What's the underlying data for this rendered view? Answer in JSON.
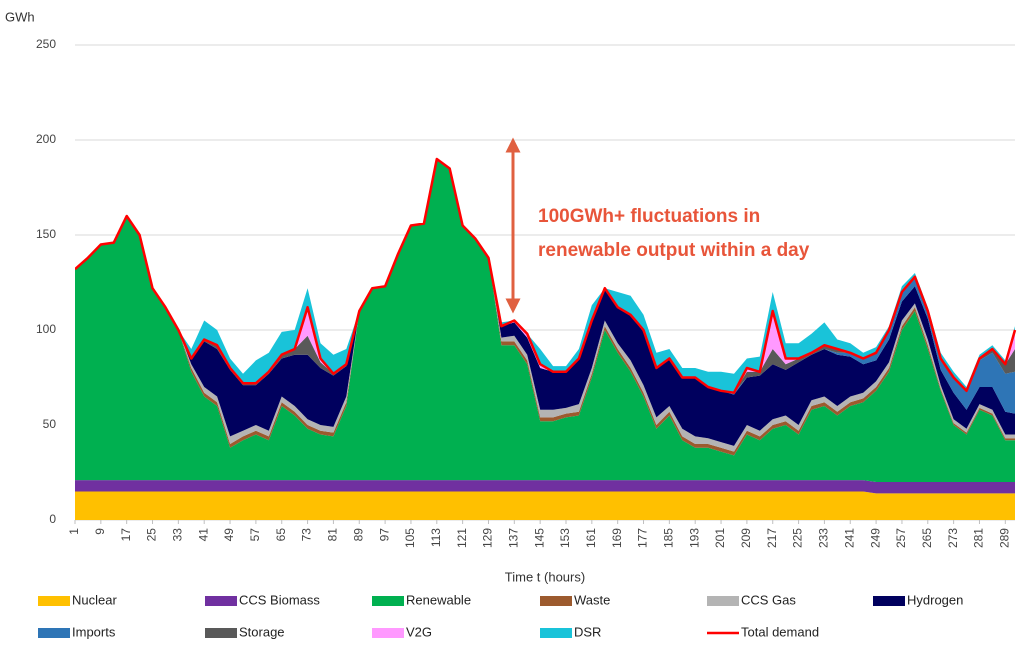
{
  "chart_data": {
    "type": "stacked_area",
    "y_label": "GWh",
    "x_label": "Time t (hours)",
    "annotation": [
      "100GWh+ fluctuations in",
      "renewable output within a day"
    ],
    "xlim": [
      1,
      292
    ],
    "ylim": [
      0,
      250
    ],
    "yticks": [
      0,
      50,
      100,
      150,
      200,
      250
    ],
    "xticks": [
      1,
      9,
      17,
      25,
      33,
      41,
      49,
      57,
      65,
      73,
      81,
      89,
      97,
      105,
      113,
      121,
      129,
      137,
      145,
      153,
      161,
      169,
      177,
      185,
      193,
      201,
      209,
      217,
      225,
      233,
      241,
      249,
      257,
      265,
      273,
      281,
      289
    ],
    "grid": true,
    "x": [
      1,
      5,
      9,
      13,
      17,
      21,
      25,
      29,
      33,
      37,
      41,
      45,
      49,
      53,
      57,
      61,
      65,
      69,
      73,
      77,
      81,
      85,
      89,
      93,
      97,
      101,
      105,
      109,
      113,
      117,
      121,
      125,
      129,
      133,
      137,
      141,
      145,
      149,
      153,
      157,
      161,
      165,
      169,
      173,
      177,
      181,
      185,
      189,
      193,
      197,
      201,
      205,
      209,
      213,
      217,
      221,
      225,
      229,
      233,
      237,
      241,
      245,
      249,
      253,
      257,
      261,
      265,
      269,
      273,
      277,
      281,
      285,
      289,
      292
    ],
    "series": [
      {
        "name": "Nuclear",
        "color": "#ffc000",
        "values": [
          15,
          15,
          15,
          15,
          15,
          15,
          15,
          15,
          15,
          15,
          15,
          15,
          15,
          15,
          15,
          15,
          15,
          15,
          15,
          15,
          15,
          15,
          15,
          15,
          15,
          15,
          15,
          15,
          15,
          15,
          15,
          15,
          15,
          15,
          15,
          15,
          15,
          15,
          15,
          15,
          15,
          15,
          15,
          15,
          15,
          15,
          15,
          15,
          15,
          15,
          15,
          15,
          15,
          15,
          15,
          15,
          15,
          15,
          15,
          15,
          15,
          15,
          14,
          14,
          14,
          14,
          14,
          14,
          14,
          14,
          14,
          14,
          14,
          14
        ]
      },
      {
        "name": "CCS Biomass",
        "color": "#7030a0",
        "values": [
          6,
          6,
          6,
          6,
          6,
          6,
          6,
          6,
          6,
          6,
          6,
          6,
          6,
          6,
          6,
          6,
          6,
          6,
          6,
          6,
          6,
          6,
          6,
          6,
          6,
          6,
          6,
          6,
          6,
          6,
          6,
          6,
          6,
          6,
          6,
          6,
          6,
          6,
          6,
          6,
          6,
          6,
          6,
          6,
          6,
          6,
          6,
          6,
          6,
          6,
          6,
          6,
          6,
          6,
          6,
          6,
          6,
          6,
          6,
          6,
          6,
          6,
          6,
          6,
          6,
          6,
          6,
          6,
          6,
          6,
          6,
          6,
          6,
          6
        ]
      },
      {
        "name": "Renewable",
        "color": "#00b050",
        "values": [
          111,
          117,
          124,
          125,
          139,
          129,
          101,
          91,
          79,
          57,
          44,
          39,
          17,
          21,
          24,
          21,
          39,
          34,
          27,
          24,
          23,
          39,
          89,
          101,
          102,
          119,
          134,
          135,
          169,
          164,
          134,
          127,
          117,
          71,
          71,
          61,
          31,
          31,
          33,
          34,
          54,
          79,
          67,
          57,
          44,
          27,
          34,
          21,
          17,
          17,
          15,
          13,
          24,
          21,
          27,
          29,
          24,
          37,
          39,
          34,
          39,
          41,
          48,
          58,
          80,
          90,
          70,
          48,
          30,
          25,
          38,
          35,
          22,
          22
        ]
      },
      {
        "name": "Waste",
        "color": "#9c5a2e",
        "values": [
          0,
          0,
          0,
          0,
          0,
          0,
          0,
          0,
          0,
          2,
          2,
          2,
          2,
          2,
          2,
          2,
          2,
          2,
          2,
          2,
          2,
          2,
          0,
          0,
          0,
          0,
          0,
          0,
          0,
          0,
          0,
          0,
          0,
          2,
          2,
          2,
          2,
          2,
          2,
          2,
          2,
          2,
          2,
          2,
          2,
          2,
          2,
          2,
          2,
          2,
          2,
          2,
          2,
          2,
          2,
          2,
          2,
          2,
          2,
          2,
          2,
          2,
          2,
          2,
          2,
          2,
          2,
          1,
          1,
          1,
          1,
          1,
          1,
          1
        ]
      },
      {
        "name": "CCS Gas",
        "color": "#b4b4b4",
        "values": [
          0,
          0,
          0,
          0,
          0,
          0,
          0,
          0,
          0,
          2,
          3,
          3,
          4,
          3,
          3,
          3,
          3,
          3,
          3,
          3,
          3,
          3,
          0,
          0,
          0,
          0,
          0,
          0,
          0,
          0,
          0,
          0,
          0,
          2,
          3,
          3,
          4,
          4,
          3,
          4,
          3,
          3,
          3,
          4,
          4,
          4,
          3,
          4,
          4,
          3,
          3,
          3,
          3,
          3,
          3,
          3,
          3,
          3,
          3,
          3,
          3,
          3,
          3,
          3,
          3,
          2,
          3,
          2,
          2,
          2,
          2,
          2,
          2,
          2
        ]
      },
      {
        "name": "Hydrogen",
        "color": "#00005e",
        "values": [
          0,
          0,
          0,
          0,
          0,
          0,
          0,
          0,
          0,
          3,
          24,
          25,
          35,
          24,
          21,
          30,
          20,
          27,
          34,
          30,
          27,
          16,
          0,
          0,
          0,
          0,
          0,
          0,
          0,
          0,
          0,
          0,
          0,
          6,
          7,
          9,
          22,
          20,
          19,
          24,
          24,
          16,
          19,
          24,
          28,
          26,
          25,
          27,
          31,
          27,
          27,
          27,
          25,
          29,
          29,
          24,
          33,
          24,
          25,
          27,
          21,
          15,
          11,
          12,
          10,
          9,
          11,
          8,
          14,
          10,
          9,
          12,
          12,
          11
        ]
      },
      {
        "name": "Imports",
        "color": "#2e75b6",
        "values": [
          0,
          0,
          0,
          0,
          0,
          0,
          0,
          0,
          0,
          0,
          0,
          0,
          0,
          0,
          0,
          0,
          0,
          0,
          0,
          0,
          0,
          0,
          0,
          0,
          0,
          0,
          0,
          0,
          0,
          0,
          0,
          0,
          0,
          0,
          0,
          0,
          0,
          0,
          0,
          0,
          1,
          1,
          0,
          0,
          0,
          0,
          0,
          0,
          0,
          0,
          0,
          1,
          0,
          0,
          0,
          0,
          0,
          0,
          0,
          1,
          2,
          3,
          4,
          5,
          5,
          5,
          4,
          6,
          8,
          10,
          14,
          18,
          20,
          22
        ]
      },
      {
        "name": "Storage",
        "color": "#595959",
        "values": [
          0,
          0,
          0,
          0,
          0,
          0,
          0,
          0,
          0,
          0,
          1,
          2,
          1,
          1,
          1,
          1,
          2,
          3,
          10,
          3,
          1,
          1,
          0,
          0,
          0,
          0,
          0,
          0,
          0,
          0,
          0,
          0,
          0,
          0,
          0,
          0,
          0,
          0,
          0,
          0,
          0,
          0,
          0,
          0,
          1,
          0,
          0,
          0,
          0,
          0,
          0,
          0,
          3,
          2,
          8,
          3,
          2,
          1,
          2,
          2,
          0,
          0,
          0,
          0,
          0,
          0,
          0,
          0,
          0,
          0,
          1,
          2,
          5,
          12
        ]
      },
      {
        "name": "V2G",
        "color": "#ff99ff",
        "values": [
          0,
          0,
          0,
          0,
          0,
          0,
          0,
          0,
          0,
          0,
          0,
          0,
          0,
          0,
          0,
          0,
          0,
          0,
          15,
          2,
          0,
          0,
          0,
          0,
          0,
          0,
          0,
          0,
          0,
          0,
          0,
          0,
          0,
          0,
          1,
          2,
          2,
          0,
          0,
          0,
          0,
          0,
          0,
          0,
          0,
          0,
          0,
          0,
          0,
          0,
          0,
          0,
          2,
          0,
          20,
          3,
          0,
          0,
          0,
          0,
          0,
          0,
          0,
          0,
          0,
          0,
          0,
          0,
          0,
          0,
          0,
          0,
          0,
          10
        ]
      },
      {
        "name": "DSR",
        "color": "#19c3d9",
        "values": [
          0,
          0,
          0,
          0,
          0,
          0,
          0,
          0,
          0,
          5,
          10,
          8,
          5,
          5,
          12,
          10,
          12,
          10,
          10,
          8,
          10,
          8,
          0,
          0,
          0,
          0,
          0,
          0,
          0,
          0,
          0,
          0,
          0,
          2,
          0,
          0,
          8,
          3,
          3,
          5,
          8,
          0,
          8,
          10,
          8,
          8,
          5,
          5,
          5,
          8,
          10,
          10,
          5,
          8,
          10,
          8,
          8,
          10,
          12,
          5,
          5,
          3,
          3,
          2,
          3,
          2,
          2,
          3,
          3,
          2,
          2,
          2,
          2,
          2
        ]
      },
      {
        "name": "Total demand",
        "color": "#ff0000",
        "type": "line",
        "values": [
          132,
          138,
          145,
          146,
          160,
          150,
          122,
          112,
          100,
          85,
          95,
          92,
          80,
          72,
          72,
          78,
          87,
          90,
          112,
          85,
          77,
          82,
          110,
          122,
          123,
          140,
          155,
          156,
          190,
          185,
          155,
          148,
          138,
          102,
          105,
          98,
          82,
          78,
          78,
          85,
          105,
          122,
          112,
          108,
          100,
          80,
          85,
          75,
          75,
          70,
          68,
          67,
          80,
          78,
          110,
          85,
          85,
          88,
          92,
          90,
          88,
          85,
          88,
          100,
          120,
          128,
          110,
          85,
          75,
          68,
          85,
          90,
          82,
          100
        ]
      }
    ]
  }
}
